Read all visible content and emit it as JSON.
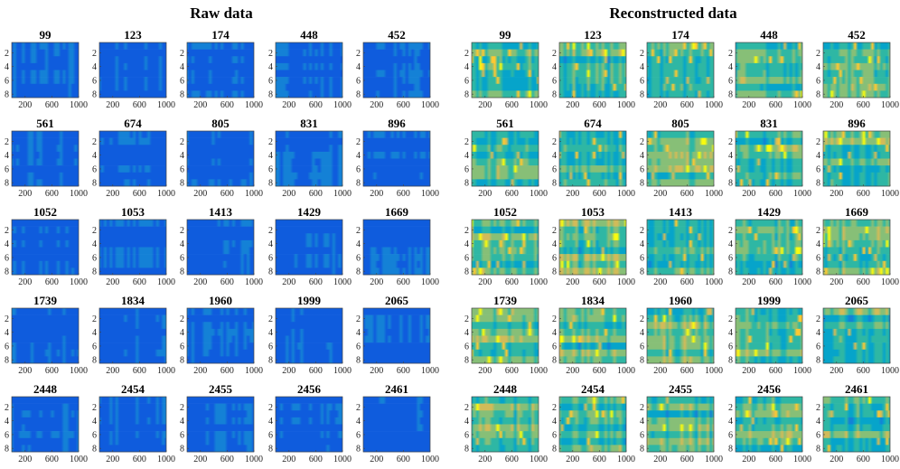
{
  "panels": [
    {
      "title": "Raw data",
      "plots": [
        "99",
        "123",
        "174",
        "448",
        "452",
        "561",
        "674",
        "805",
        "831",
        "896",
        "1052",
        "1053",
        "1413",
        "1429",
        "1669",
        "1739",
        "1834",
        "1960",
        "1999",
        "2065",
        "2448",
        "2454",
        "2455",
        "2456",
        "2461"
      ]
    },
    {
      "title": "Reconstructed data",
      "plots": [
        "99",
        "123",
        "174",
        "448",
        "452",
        "561",
        "674",
        "805",
        "831",
        "896",
        "1052",
        "1053",
        "1413",
        "1429",
        "1669",
        "1739",
        "1834",
        "1960",
        "1999",
        "2065",
        "2448",
        "2454",
        "2455",
        "2456",
        "2461"
      ]
    }
  ],
  "yticks": [
    "2",
    "4",
    "6",
    "8"
  ],
  "xticks": [
    "200",
    "600",
    "1000"
  ]
}
